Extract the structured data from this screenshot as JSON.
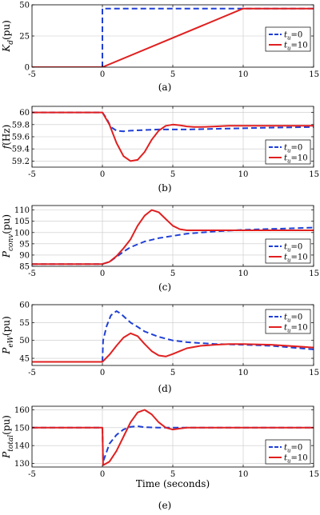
{
  "colors": {
    "series_tu0": "#1f3fd6",
    "series_tu10": "#e02020"
  },
  "xlabel": "Time (seconds)",
  "chart_data": [
    {
      "id": "a",
      "type": "line",
      "caption": "(a)",
      "ylabel_main": "K",
      "ylabel_sub": "d",
      "ylabel_unit": "(pu)",
      "xlim": [
        -5,
        15
      ],
      "ylim": [
        0,
        50
      ],
      "xticks": [
        -5,
        0,
        5,
        10,
        15
      ],
      "yticks": [
        0,
        25,
        50
      ],
      "xtick_labels": [
        "-5",
        "0",
        "5",
        "10",
        "15"
      ],
      "ytick_labels": [
        "0",
        "25",
        "50"
      ],
      "grid": true,
      "legend": "right",
      "series": [
        {
          "legend_var": "t",
          "legend_sub": "u",
          "legend_val": "=0",
          "style": "dashed",
          "x": [
            -5,
            0,
            0,
            15
          ],
          "y": [
            0,
            0,
            47,
            47
          ]
        },
        {
          "legend_var": "t",
          "legend_sub": "u",
          "legend_val": "=10",
          "style": "solid",
          "x": [
            -5,
            0,
            10,
            15
          ],
          "y": [
            0,
            0,
            47,
            47
          ]
        }
      ]
    },
    {
      "id": "b",
      "type": "line",
      "caption": "(b)",
      "ylabel_main": "f",
      "ylabel_sub": "",
      "ylabel_unit": "(Hz)",
      "xlim": [
        -5,
        15
      ],
      "ylim": [
        59.1,
        60.1
      ],
      "xticks": [
        -5,
        0,
        5,
        10,
        15
      ],
      "yticks": [
        59.2,
        59.4,
        59.6,
        59.8,
        60
      ],
      "xtick_labels": [
        "-5",
        "0",
        "5",
        "10",
        "15"
      ],
      "ytick_labels": [
        "59.2",
        "59.4",
        "59.6",
        "59.8",
        "60"
      ],
      "grid": true,
      "legend": "bottom-right",
      "series": [
        {
          "legend_var": "t",
          "legend_sub": "u",
          "legend_val": "=0",
          "style": "dashed",
          "x": [
            -5,
            0,
            0.3,
            0.6,
            1,
            1.5,
            2,
            3,
            4,
            5,
            6,
            8,
            10,
            12,
            15
          ],
          "y": [
            60,
            60,
            59.9,
            59.76,
            59.7,
            59.69,
            59.7,
            59.71,
            59.72,
            59.72,
            59.72,
            59.73,
            59.74,
            59.75,
            59.76
          ]
        },
        {
          "legend_var": "t",
          "legend_sub": "u",
          "legend_val": "=10",
          "style": "solid",
          "x": [
            -5,
            0,
            0.5,
            1,
            1.5,
            2,
            2.5,
            3,
            3.5,
            4,
            4.5,
            5,
            5.5,
            6,
            6.5,
            7,
            8,
            9,
            10,
            12,
            15
          ],
          "y": [
            60,
            60,
            59.8,
            59.5,
            59.28,
            59.2,
            59.22,
            59.35,
            59.55,
            59.7,
            59.78,
            59.8,
            59.79,
            59.77,
            59.76,
            59.76,
            59.77,
            59.78,
            59.78,
            59.78,
            59.78
          ]
        }
      ]
    },
    {
      "id": "c",
      "type": "line",
      "caption": "(c)",
      "ylabel_main": "P",
      "ylabel_sub": "conv",
      "ylabel_unit": "(pu)",
      "xlim": [
        -5,
        15
      ],
      "ylim": [
        85,
        112
      ],
      "xticks": [
        -5,
        0,
        5,
        10,
        15
      ],
      "yticks": [
        85,
        90,
        95,
        100,
        105,
        110
      ],
      "xtick_labels": [
        "-5",
        "0",
        "5",
        "10",
        "15"
      ],
      "ytick_labels": [
        "85",
        "90",
        "95",
        "100",
        "105",
        "110"
      ],
      "grid": true,
      "legend": "bottom-right",
      "series": [
        {
          "legend_var": "t",
          "legend_sub": "u",
          "legend_val": "=0",
          "style": "dashed",
          "x": [
            -5,
            0,
            0.5,
            1,
            1.5,
            2,
            3,
            4,
            5,
            6,
            8,
            10,
            12,
            15
          ],
          "y": [
            86,
            86,
            87,
            89.2,
            91.5,
            93.5,
            96,
            97.5,
            98.5,
            99.5,
            100.5,
            101.2,
            101.6,
            102.2
          ]
        },
        {
          "legend_var": "t",
          "legend_sub": "u",
          "legend_val": "=10",
          "style": "solid",
          "x": [
            -5,
            0,
            0.5,
            1,
            1.5,
            2,
            2.5,
            3,
            3.5,
            4,
            4.5,
            5,
            5.5,
            6,
            7,
            8,
            10,
            12,
            15
          ],
          "y": [
            86,
            86,
            87,
            89.5,
            93,
            97,
            103,
            107.5,
            110,
            109,
            106,
            103,
            101.5,
            101,
            101,
            101,
            101,
            101,
            101
          ]
        }
      ]
    },
    {
      "id": "d",
      "type": "line",
      "caption": "(d)",
      "ylabel_main": "P",
      "ylabel_sub": "eW",
      "ylabel_unit": "(pu)",
      "xlim": [
        -5,
        15
      ],
      "ylim": [
        43,
        60
      ],
      "xticks": [
        -5,
        0,
        5,
        10,
        15
      ],
      "yticks": [
        45,
        50,
        55,
        60
      ],
      "xtick_labels": [
        "-5",
        "0",
        "5",
        "10",
        "15"
      ],
      "ytick_labels": [
        "45",
        "50",
        "55",
        "60"
      ],
      "grid": true,
      "legend": "top-right",
      "series": [
        {
          "legend_var": "t",
          "legend_sub": "u",
          "legend_val": "=0",
          "style": "dashed",
          "x": [
            -5,
            0,
            0.05,
            0.3,
            0.6,
            1,
            1.3,
            2,
            2.5,
            3,
            4,
            5,
            6,
            8,
            10,
            12,
            15
          ],
          "y": [
            44,
            44,
            50,
            54,
            57,
            58.2,
            57.5,
            55,
            53.8,
            52.5,
            51,
            50,
            49.5,
            49,
            48.8,
            48.5,
            47.5
          ]
        },
        {
          "legend_var": "t",
          "legend_sub": "u",
          "legend_val": "=10",
          "style": "solid",
          "x": [
            -5,
            0,
            0.5,
            1,
            1.5,
            2,
            2.5,
            3,
            3.5,
            4,
            4.5,
            5,
            5.5,
            6,
            7,
            8,
            9,
            10,
            12,
            15
          ],
          "y": [
            44,
            44,
            46,
            48.5,
            50.8,
            52,
            51.2,
            49,
            47,
            45.8,
            45.5,
            46.2,
            47,
            47.8,
            48.5,
            48.8,
            49,
            49,
            48.8,
            48
          ]
        }
      ]
    },
    {
      "id": "e",
      "type": "line",
      "caption": "(e)",
      "ylabel_main": "P",
      "ylabel_sub": "total",
      "ylabel_unit": "(pu)",
      "xlim": [
        -5,
        15
      ],
      "ylim": [
        128,
        162
      ],
      "xticks": [
        -5,
        0,
        5,
        10,
        15
      ],
      "yticks": [
        130,
        140,
        150,
        160
      ],
      "xtick_labels": [
        "-5",
        "0",
        "5",
        "10",
        "15"
      ],
      "ytick_labels": [
        "130",
        "140",
        "150",
        "160"
      ],
      "grid": true,
      "legend": "bottom-right",
      "series": [
        {
          "legend_var": "t",
          "legend_sub": "u",
          "legend_val": "=0",
          "style": "dashed",
          "x": [
            -5,
            0,
            0.05,
            0.5,
            1,
            1.5,
            2,
            2.5,
            3,
            4,
            5,
            6,
            8,
            10,
            12,
            15
          ],
          "y": [
            150,
            150,
            131,
            141,
            146,
            149,
            150.5,
            150.8,
            150.3,
            150,
            150,
            150,
            150,
            150,
            150,
            150
          ]
        },
        {
          "legend_var": "t",
          "legend_sub": "u",
          "legend_val": "=10",
          "style": "solid",
          "x": [
            -5,
            0,
            0.05,
            0.5,
            1,
            1.5,
            2,
            2.5,
            3,
            3.5,
            4,
            4.5,
            5,
            5.5,
            6,
            7,
            8,
            10,
            12,
            15
          ],
          "y": [
            150,
            150,
            129,
            131,
            137,
            145,
            153,
            158.5,
            160,
            157.5,
            153,
            150,
            149,
            149.5,
            150,
            150,
            150,
            150,
            150,
            150
          ]
        }
      ]
    }
  ]
}
